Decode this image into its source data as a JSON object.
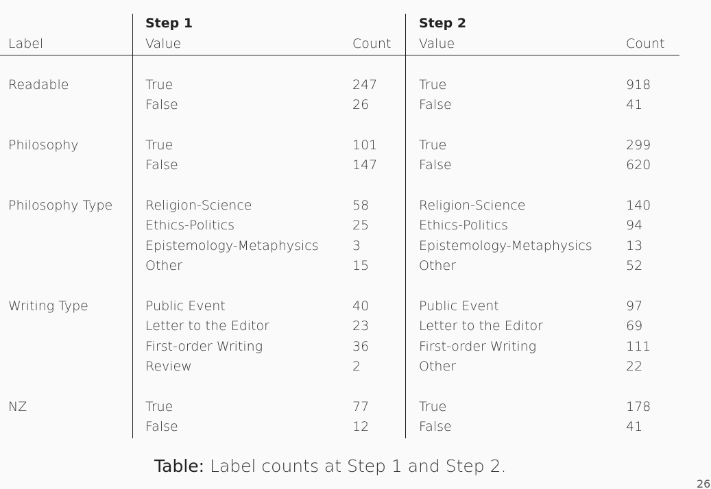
{
  "header": {
    "label": "Label",
    "step1": "Step 1",
    "step2": "Step 2",
    "value": "Value",
    "count": "Count"
  },
  "groups": [
    {
      "label": "Readable",
      "rows": [
        {
          "v1": "True",
          "c1": "247",
          "v2": "True",
          "c2": "918"
        },
        {
          "v1": "False",
          "c1": "26",
          "v2": "False",
          "c2": "41"
        }
      ]
    },
    {
      "label": "Philosophy",
      "rows": [
        {
          "v1": "True",
          "c1": "101",
          "v2": "True",
          "c2": "299"
        },
        {
          "v1": "False",
          "c1": "147",
          "v2": "False",
          "c2": "620"
        }
      ]
    },
    {
      "label": "Philosophy Type",
      "rows": [
        {
          "v1": "Religion-Science",
          "c1": "58",
          "v2": "Religion-Science",
          "c2": "140"
        },
        {
          "v1": "Ethics-Politics",
          "c1": "25",
          "v2": "Ethics-Politics",
          "c2": "94"
        },
        {
          "v1": "Epistemology-Metaphysics",
          "c1": "3",
          "v2": "Epistemology-Metaphysics",
          "c2": "13"
        },
        {
          "v1": "Other",
          "c1": "15",
          "v2": "Other",
          "c2": "52"
        }
      ]
    },
    {
      "label": "Writing Type",
      "rows": [
        {
          "v1": "Public Event",
          "c1": "40",
          "v2": "Public Event",
          "c2": "97"
        },
        {
          "v1": "Letter to the Editor",
          "c1": "23",
          "v2": "Letter to the Editor",
          "c2": "69"
        },
        {
          "v1": "First-order Writing",
          "c1": "36",
          "v2": "First-order Writing",
          "c2": "111"
        },
        {
          "v1": "Review",
          "c1": "2",
          "v2": "Other",
          "c2": "22"
        }
      ]
    },
    {
      "label": "NZ",
      "rows": [
        {
          "v1": "True",
          "c1": "77",
          "v2": "True",
          "c2": "178"
        },
        {
          "v1": "False",
          "c1": "12",
          "v2": "False",
          "c2": "41"
        }
      ]
    }
  ],
  "caption": {
    "label": "Table:",
    "text": "Label counts at Step 1 and Step 2."
  },
  "page_number": "26"
}
